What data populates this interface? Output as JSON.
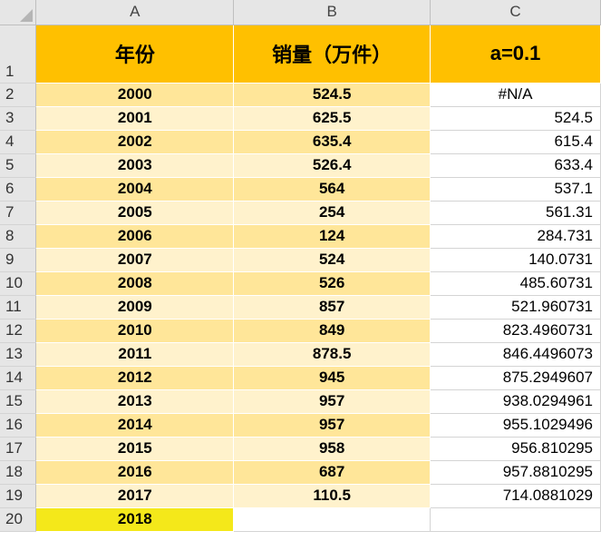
{
  "columns": [
    "A",
    "B",
    "C"
  ],
  "headers": {
    "a": "年份",
    "b": "销量（万件）",
    "c": "a=0.1"
  },
  "rows": [
    {
      "num": "2",
      "year": "2000",
      "sales": "524.5",
      "smoothed": "#N/A"
    },
    {
      "num": "3",
      "year": "2001",
      "sales": "625.5",
      "smoothed": "524.5"
    },
    {
      "num": "4",
      "year": "2002",
      "sales": "635.4",
      "smoothed": "615.4"
    },
    {
      "num": "5",
      "year": "2003",
      "sales": "526.4",
      "smoothed": "633.4"
    },
    {
      "num": "6",
      "year": "2004",
      "sales": "564",
      "smoothed": "537.1"
    },
    {
      "num": "7",
      "year": "2005",
      "sales": "254",
      "smoothed": "561.31"
    },
    {
      "num": "8",
      "year": "2006",
      "sales": "124",
      "smoothed": "284.731"
    },
    {
      "num": "9",
      "year": "2007",
      "sales": "524",
      "smoothed": "140.0731"
    },
    {
      "num": "10",
      "year": "2008",
      "sales": "526",
      "smoothed": "485.60731"
    },
    {
      "num": "11",
      "year": "2009",
      "sales": "857",
      "smoothed": "521.960731"
    },
    {
      "num": "12",
      "year": "2010",
      "sales": "849",
      "smoothed": "823.4960731"
    },
    {
      "num": "13",
      "year": "2011",
      "sales": "878.5",
      "smoothed": "846.4496073"
    },
    {
      "num": "14",
      "year": "2012",
      "sales": "945",
      "smoothed": "875.2949607"
    },
    {
      "num": "15",
      "year": "2013",
      "sales": "957",
      "smoothed": "938.0294961"
    },
    {
      "num": "16",
      "year": "2014",
      "sales": "957",
      "smoothed": "955.1029496"
    },
    {
      "num": "17",
      "year": "2015",
      "sales": "958",
      "smoothed": "956.810295"
    },
    {
      "num": "18",
      "year": "2016",
      "sales": "687",
      "smoothed": "957.8810295"
    },
    {
      "num": "19",
      "year": "2017",
      "sales": "110.5",
      "smoothed": "714.0881029"
    }
  ],
  "last_row": {
    "num": "20",
    "year": "2018"
  },
  "header_row_num": "1",
  "colors": {
    "header": "#ffc000",
    "band_dark": "#ffe699",
    "band_light": "#fff2cc",
    "highlight": "#f4e81a"
  }
}
